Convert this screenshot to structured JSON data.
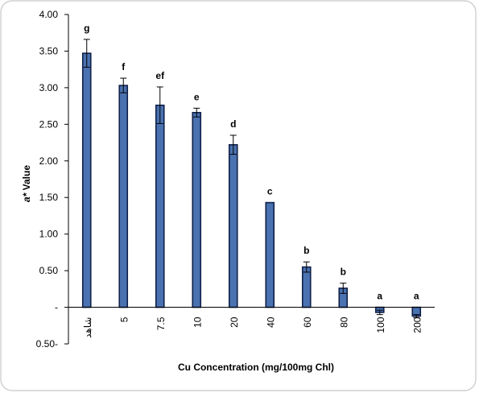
{
  "chart_data": {
    "type": "bar",
    "xlabel": "Cu Concentration (mg/100mg Chl)",
    "ylabel": "a* Value",
    "ylabel_italic_part": "a*",
    "ylabel_rest": " Value",
    "ylim": [
      -0.5,
      4.0
    ],
    "yticks": [
      -0.5,
      0.0,
      0.5,
      1.0,
      1.5,
      2.0,
      2.5,
      3.0,
      3.5,
      4.0
    ],
    "ytick_labels": [
      "0.50-",
      "-",
      "0.50",
      "1.00",
      "1.50",
      "2.00",
      "2.50",
      "3.00",
      "3.50",
      "4.00"
    ],
    "categories": [
      "شاهد",
      "5",
      "7.5",
      "10",
      "20",
      "40",
      "60",
      "80",
      "100",
      "200"
    ],
    "values": [
      3.47,
      3.03,
      2.76,
      2.66,
      2.22,
      1.43,
      0.55,
      0.26,
      -0.07,
      -0.12
    ],
    "errors": [
      0.19,
      0.1,
      0.25,
      0.06,
      0.13,
      0.0,
      0.07,
      0.07,
      0.03,
      0.02
    ],
    "letters": [
      "g",
      "f",
      "ef",
      "e",
      "d",
      "c",
      "b",
      "b",
      "a",
      "a"
    ],
    "bar_color": "#4a72b0",
    "bar_edge_color": "#10204a",
    "grid": false,
    "legend": "none"
  }
}
